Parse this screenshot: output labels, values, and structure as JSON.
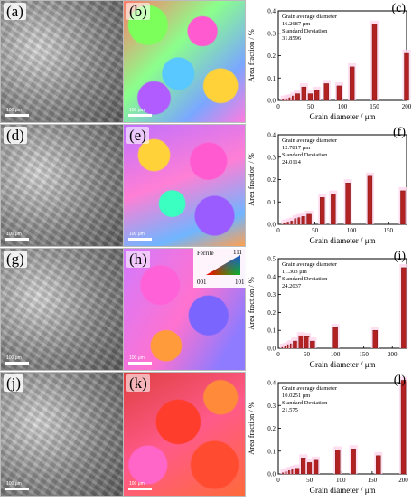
{
  "panels": {
    "a": "(a)",
    "b": "(b)",
    "d": "(d)",
    "e": "(e)",
    "g": "(g)",
    "h": "(h)",
    "j": "(j)",
    "k": "(k)"
  },
  "scalebar_text": "100 μm",
  "ipf_legend": {
    "title": "Ferrite",
    "pole_111": "111",
    "pole_001": "001",
    "pole_101": "101",
    "colors": {
      "corner_001": "#ff0000",
      "corner_101": "#00cc00",
      "corner_111": "#2a3cff"
    }
  },
  "bar_color": "#b22222",
  "chart_data": [
    {
      "type": "bar",
      "label": "(c)",
      "annotation": [
        "Grain average diameter",
        "16.2687 μm",
        "Standard Deviation",
        "31.8596"
      ],
      "x": [
        10,
        15,
        20,
        25,
        30,
        40,
        50,
        60,
        75,
        95,
        115,
        150,
        200
      ],
      "values": [
        0.005,
        0.008,
        0.012,
        0.02,
        0.03,
        0.06,
        0.03,
        0.045,
        0.075,
        0.065,
        0.15,
        0.34,
        0.21
      ],
      "xlabel": "Grain diameter / μm",
      "ylabel": "Area fraction / %",
      "xlim": [
        0,
        200
      ],
      "ylim": [
        0,
        0.4
      ],
      "xticks": [
        0,
        50,
        100,
        150,
        200
      ],
      "yticks": [
        0.0,
        0.1,
        0.2,
        0.3,
        0.4
      ]
    },
    {
      "type": "bar",
      "label": "(f)",
      "annotation": [
        "Grain average diameter",
        "12.7817 μm",
        "Standard Deviation",
        "24.0114"
      ],
      "x": [
        10,
        15,
        20,
        25,
        30,
        35,
        42,
        60,
        75,
        95,
        125,
        170
      ],
      "values": [
        0.005,
        0.01,
        0.015,
        0.025,
        0.03,
        0.035,
        0.045,
        0.12,
        0.135,
        0.185,
        0.215,
        0.15
      ],
      "xlabel": "Grain diameter / μm",
      "ylabel": "Area fraction / %",
      "xlim": [
        0,
        175
      ],
      "ylim": [
        0,
        0.4
      ],
      "xticks": [
        0,
        50,
        100,
        150
      ],
      "yticks": [
        0.0,
        0.1,
        0.2,
        0.3,
        0.4
      ]
    },
    {
      "type": "bar",
      "label": "(i)",
      "annotation": [
        "Grain average diameter",
        "11.303 μm",
        "Standard Deviation",
        "24.2037"
      ],
      "x": [
        10,
        15,
        20,
        25,
        30,
        40,
        50,
        60,
        100,
        170,
        220
      ],
      "values": [
        0.005,
        0.01,
        0.02,
        0.025,
        0.04,
        0.07,
        0.065,
        0.04,
        0.115,
        0.1,
        0.45
      ],
      "xlabel": "Grain diameter / μm",
      "ylabel": "Area fraction / %",
      "xlim": [
        0,
        225
      ],
      "ylim": [
        0,
        0.5
      ],
      "xticks": [
        0,
        50,
        100,
        150,
        200
      ],
      "yticks": [
        0.0,
        0.1,
        0.2,
        0.3,
        0.4,
        0.5
      ]
    },
    {
      "type": "bar",
      "label": "(l)",
      "annotation": [
        "Grain average diameter",
        "10.0251 μm",
        "Standard Deviation",
        "21.575"
      ],
      "x": [
        10,
        15,
        20,
        25,
        30,
        40,
        50,
        60,
        95,
        120,
        160,
        200
      ],
      "values": [
        0.005,
        0.01,
        0.015,
        0.02,
        0.025,
        0.07,
        0.05,
        0.06,
        0.105,
        0.11,
        0.08,
        0.41
      ],
      "xlabel": "Grain diameter / μm",
      "ylabel": "Area fraction / %",
      "xlim": [
        0,
        205
      ],
      "ylim": [
        0,
        0.4
      ],
      "xticks": [
        0,
        50,
        100,
        150,
        200
      ],
      "yticks": [
        0.0,
        0.1,
        0.2,
        0.3,
        0.4
      ]
    }
  ]
}
